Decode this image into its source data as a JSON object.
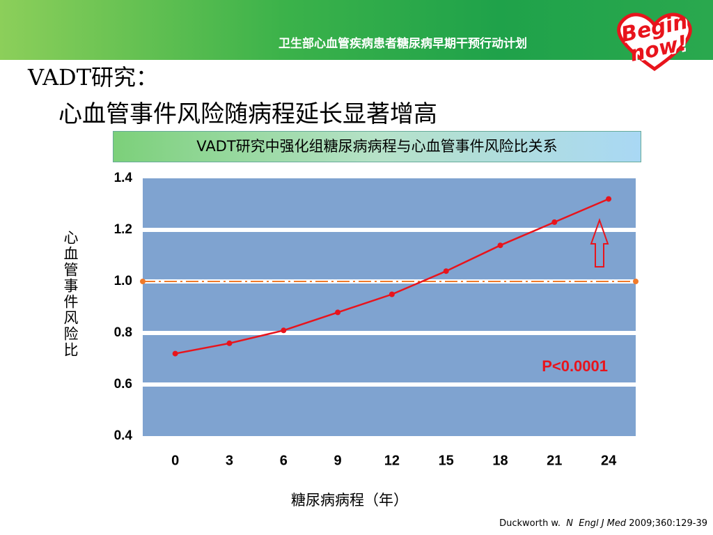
{
  "header": {
    "banner": "卫生部心血管疾病患者糖尿病早期干预行动计划",
    "logo": "Begin now!"
  },
  "slide_title": [
    "VADT研究：",
    "心血管事件风险随病程延长显著增高"
  ],
  "citation": {
    "author": "Duckworth w.  ",
    "journal": "N  Engl J Med",
    "ref": " 2009;360:129-39"
  },
  "chart_data": {
    "type": "line",
    "title": "VADT研究中强化组糖尿病病程与心血管事件风险比关系",
    "x_label": "糖尿病病程（年）",
    "y_label": "心血管事件风险比",
    "x": [
      0,
      3,
      6,
      9,
      12,
      15,
      18,
      21,
      24
    ],
    "series": [
      {
        "color": "#e8141c",
        "values": [
          0.72,
          0.76,
          0.81,
          0.88,
          0.95,
          1.04,
          1.14,
          1.23,
          1.32
        ]
      }
    ],
    "xlim": [
      -1.8,
      25.5
    ],
    "xticks": [
      0,
      3,
      6,
      9,
      12,
      15,
      18,
      21,
      24
    ],
    "ylim": [
      0.4,
      1.4
    ],
    "yticks": [
      0.4,
      0.6,
      0.8,
      {
        "value": 1,
        "label": "1.0"
      },
      1.2,
      1.4
    ],
    "grid": true,
    "plot_background": "#7fa3d0",
    "grid_color": "#ffffff",
    "reference_line": 1,
    "reference_color": "#f07a2a",
    "annotation": "P<0.0001",
    "annotation_color": "#e8141c"
  }
}
